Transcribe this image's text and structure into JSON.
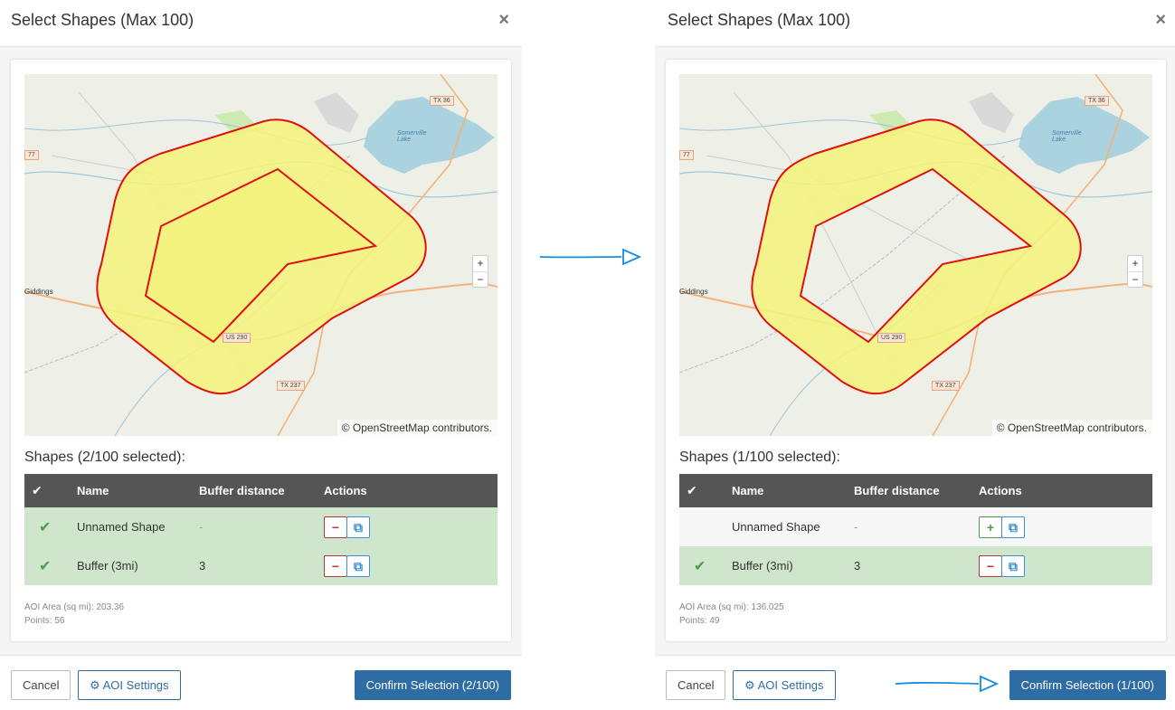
{
  "left": {
    "title": "Select Shapes (Max 100)",
    "close": "×",
    "shapes_heading": "Shapes (2/100 selected):",
    "columns": [
      "Name",
      "Buffer distance",
      "Actions"
    ],
    "rows": [
      {
        "name": "Unnamed Shape",
        "buffer": "-",
        "selected": true,
        "action": "−"
      },
      {
        "name": "Buffer (3mi)",
        "buffer": "3",
        "selected": true,
        "action": "−"
      }
    ],
    "aoi_area": "AOI Area (sq mi): 203.36",
    "points": "Points: 56",
    "cancel": "Cancel",
    "aoi_settings": "AOI Settings",
    "confirm": "Confirm Selection (2/100)"
  },
  "right": {
    "title": "Select Shapes (Max 100)",
    "close": "×",
    "shapes_heading": "Shapes (1/100 selected):",
    "columns": [
      "Name",
      "Buffer distance",
      "Actions"
    ],
    "rows": [
      {
        "name": "Unnamed Shape",
        "buffer": "-",
        "selected": false,
        "action": "+"
      },
      {
        "name": "Buffer (3mi)",
        "buffer": "3",
        "selected": true,
        "action": "−"
      }
    ],
    "aoi_area": "AOI Area (sq mi): 136.025",
    "points": "Points: 49",
    "cancel": "Cancel",
    "aoi_settings": "AOI Settings",
    "confirm": "Confirm Selection (1/100)"
  },
  "map": {
    "attribution": "© OpenStreetMap contributors.",
    "zoom_in": "+",
    "zoom_out": "−",
    "labels": {
      "tx36": "TX 36",
      "tx237": "TX 237",
      "us290": "US 290",
      "r77": "77",
      "giddings": "Giddings",
      "lake": "Somerville Lake"
    }
  },
  "icons": {
    "check": "✔",
    "copy": "⧉",
    "gear": "⚙"
  },
  "colors": {
    "primary": "#2e6da4",
    "selected_row": "#d0e6cc",
    "header_row": "#555555",
    "polygon_fill": "#f5f37a",
    "polygon_stroke": "#e01010",
    "arrow": "#1a8ce0"
  }
}
